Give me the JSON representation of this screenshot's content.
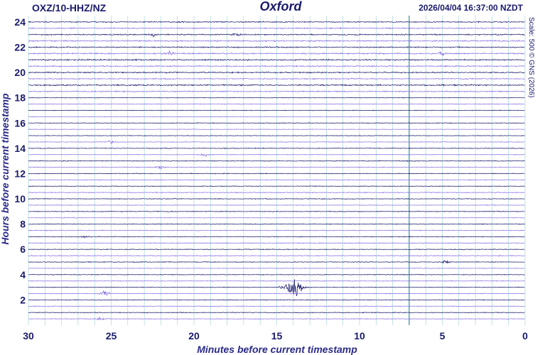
{
  "station": "OXZ/10-HHZ/NZ",
  "title": "Oxford",
  "timestamp": "2026/04/04 16:37:00 NZDT",
  "scale_note": "Scale: 500 © GNS (2026)",
  "chart_data": {
    "type": "line",
    "title": "Oxford",
    "xlabel": "Minutes before current timestamp",
    "ylabel": "Hours before current timestamp",
    "xlim": [
      30,
      0
    ],
    "ylim": [
      0,
      24.5
    ],
    "x_ticks": [
      30,
      25,
      20,
      15,
      10,
      5,
      0
    ],
    "y_ticks": [
      2,
      4,
      6,
      8,
      10,
      12,
      14,
      16,
      18,
      20,
      22,
      24
    ],
    "vertical_grid_every_min": 1,
    "marker_minute": 7,
    "trace_count": 48,
    "trace_interval_hours": 0.5,
    "trace_colors": [
      "#1a1a6e",
      "#8a6fe0"
    ],
    "events": [
      {
        "minute": 14.0,
        "hour": 2.9,
        "amplitude": "large"
      },
      {
        "minute": 25.4,
        "hour": 2.3,
        "amplitude": "medium"
      },
      {
        "minute": 22.0,
        "hour": 12.7,
        "amplitude": "small"
      },
      {
        "minute": 19.3,
        "hour": 13.3,
        "amplitude": "small"
      },
      {
        "minute": 25.0,
        "hour": 14.3,
        "amplitude": "small"
      },
      {
        "minute": 5.0,
        "hour": 21.3,
        "amplitude": "small"
      },
      {
        "minute": 21.5,
        "hour": 21.3,
        "amplitude": "small"
      },
      {
        "minute": 22.5,
        "hour": 23.0,
        "amplitude": "small"
      },
      {
        "minute": 17.5,
        "hour": 23.0,
        "amplitude": "small"
      },
      {
        "minute": 26.5,
        "hour": 6.9,
        "amplitude": "small"
      },
      {
        "minute": 4.8,
        "hour": 5.1,
        "amplitude": "small"
      },
      {
        "minute": 25.7,
        "hour": 0.7,
        "amplitude": "small"
      }
    ]
  }
}
